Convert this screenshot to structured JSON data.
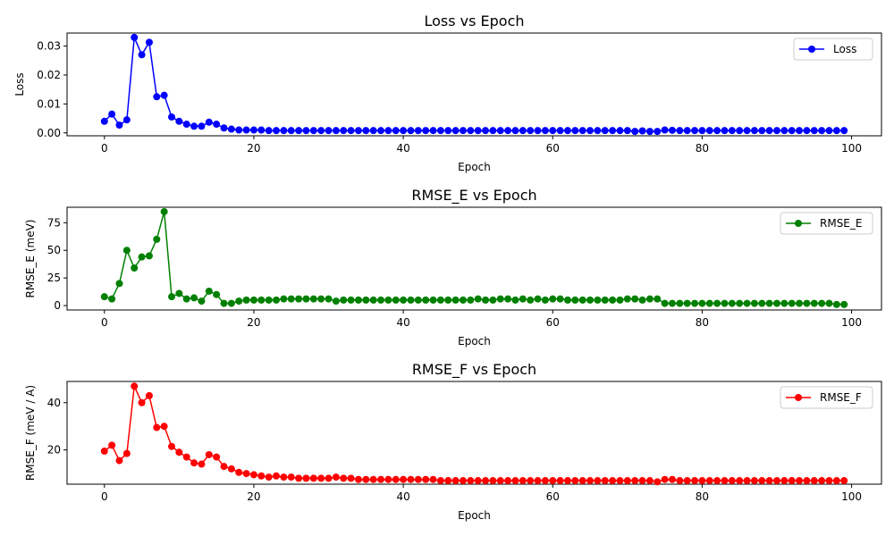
{
  "chart_data": [
    {
      "type": "line",
      "title": "Loss vs Epoch",
      "xlabel": "Epoch",
      "ylabel": "Loss",
      "xlim": [
        -5,
        104
      ],
      "ylim": [
        -0.001,
        0.0345
      ],
      "xticks": [
        0,
        20,
        40,
        60,
        80,
        100
      ],
      "yticks": [
        0.0,
        0.01,
        0.02,
        0.03
      ],
      "ytick_labels": [
        "0.00",
        "0.01",
        "0.02",
        "0.03"
      ],
      "legend": "top-right",
      "series": [
        {
          "name": "Loss",
          "color": "#0000ff",
          "x": [
            0,
            1,
            2,
            3,
            4,
            5,
            6,
            7,
            8,
            9,
            10,
            11,
            12,
            13,
            14,
            15,
            16,
            17,
            18,
            19,
            20,
            21,
            22,
            23,
            24,
            25,
            26,
            27,
            28,
            29,
            30,
            31,
            32,
            33,
            34,
            35,
            36,
            37,
            38,
            39,
            40,
            41,
            42,
            43,
            44,
            45,
            46,
            47,
            48,
            49,
            50,
            51,
            52,
            53,
            54,
            55,
            56,
            57,
            58,
            59,
            60,
            61,
            62,
            63,
            64,
            65,
            66,
            67,
            68,
            69,
            70,
            71,
            72,
            73,
            74,
            75,
            76,
            77,
            78,
            79,
            80,
            81,
            82,
            83,
            84,
            85,
            86,
            87,
            88,
            89,
            90,
            91,
            92,
            93,
            94,
            95,
            96,
            97,
            98,
            99
          ],
          "values": [
            0.004,
            0.0065,
            0.0027,
            0.0045,
            0.033,
            0.027,
            0.0313,
            0.0125,
            0.013,
            0.0055,
            0.004,
            0.003,
            0.0023,
            0.0023,
            0.0037,
            0.003,
            0.0017,
            0.0013,
            0.001,
            0.001,
            0.001,
            0.001,
            0.0008,
            0.0008,
            0.0008,
            0.0008,
            0.0008,
            0.0008,
            0.0008,
            0.0008,
            0.0008,
            0.0008,
            0.0008,
            0.0008,
            0.0008,
            0.0008,
            0.0008,
            0.0008,
            0.0008,
            0.0008,
            0.0008,
            0.0008,
            0.0008,
            0.0008,
            0.0008,
            0.0008,
            0.0008,
            0.0008,
            0.0008,
            0.0008,
            0.0008,
            0.0008,
            0.0008,
            0.0008,
            0.0008,
            0.0008,
            0.0008,
            0.0008,
            0.0008,
            0.0008,
            0.0008,
            0.0008,
            0.0008,
            0.0008,
            0.0008,
            0.0008,
            0.0008,
            0.0008,
            0.0008,
            0.0008,
            0.0008,
            0.0005,
            0.0007,
            0.0005,
            0.0005,
            0.001,
            0.0009,
            0.0008,
            0.0008,
            0.0008,
            0.0008,
            0.0008,
            0.0008,
            0.0008,
            0.0008,
            0.0008,
            0.0008,
            0.0008,
            0.0008,
            0.0008,
            0.0008,
            0.0008,
            0.0008,
            0.0008,
            0.0008,
            0.0008,
            0.0008,
            0.0008,
            0.0008,
            0.0008
          ]
        }
      ]
    },
    {
      "type": "line",
      "title": "RMSE_E vs Epoch",
      "xlabel": "Epoch",
      "ylabel": "RMSE_E (meV)",
      "xlim": [
        -5,
        104
      ],
      "ylim": [
        -4,
        89
      ],
      "xticks": [
        0,
        20,
        40,
        60,
        80,
        100
      ],
      "yticks": [
        0,
        25,
        50,
        75
      ],
      "ytick_labels": [
        "0",
        "25",
        "50",
        "75"
      ],
      "legend": "top-right",
      "series": [
        {
          "name": "RMSE_E",
          "color": "#008000",
          "x": [
            0,
            1,
            2,
            3,
            4,
            5,
            6,
            7,
            8,
            9,
            10,
            11,
            12,
            13,
            14,
            15,
            16,
            17,
            18,
            19,
            20,
            21,
            22,
            23,
            24,
            25,
            26,
            27,
            28,
            29,
            30,
            31,
            32,
            33,
            34,
            35,
            36,
            37,
            38,
            39,
            40,
            41,
            42,
            43,
            44,
            45,
            46,
            47,
            48,
            49,
            50,
            51,
            52,
            53,
            54,
            55,
            56,
            57,
            58,
            59,
            60,
            61,
            62,
            63,
            64,
            65,
            66,
            67,
            68,
            69,
            70,
            71,
            72,
            73,
            74,
            75,
            76,
            77,
            78,
            79,
            80,
            81,
            82,
            83,
            84,
            85,
            86,
            87,
            88,
            89,
            90,
            91,
            92,
            93,
            94,
            95,
            96,
            97,
            98,
            99
          ],
          "values": [
            8,
            6,
            20,
            50,
            34,
            44,
            45,
            60,
            85,
            8,
            11,
            6,
            7,
            4,
            13,
            10,
            2,
            2,
            4,
            5,
            5,
            5,
            5,
            5,
            6,
            6,
            6,
            6,
            6,
            6,
            6,
            4,
            5,
            5,
            5,
            5,
            5,
            5,
            5,
            5,
            5,
            5,
            5,
            5,
            5,
            5,
            5,
            5,
            5,
            5,
            6,
            5,
            5,
            6,
            6,
            5,
            6,
            5,
            6,
            5,
            6,
            6,
            5,
            5,
            5,
            5,
            5,
            5,
            5,
            5,
            6,
            6,
            5,
            6,
            6,
            2,
            2,
            2,
            2,
            2,
            2,
            2,
            2,
            2,
            2,
            2,
            2,
            2,
            2,
            2,
            2,
            2,
            2,
            2,
            2,
            2,
            2,
            2,
            1,
            1
          ]
        }
      ]
    },
    {
      "type": "line",
      "title": "RMSE_F vs Epoch",
      "xlabel": "Epoch",
      "ylabel": "RMSE_F (meV / A)",
      "xlim": [
        -5,
        104
      ],
      "ylim": [
        5.5,
        49
      ],
      "xticks": [
        0,
        20,
        40,
        60,
        80,
        100
      ],
      "yticks": [
        20,
        40
      ],
      "ytick_labels": [
        "20",
        "40"
      ],
      "legend": "top-right",
      "series": [
        {
          "name": "RMSE_F",
          "color": "#ff0000",
          "x": [
            0,
            1,
            2,
            3,
            4,
            5,
            6,
            7,
            8,
            9,
            10,
            11,
            12,
            13,
            14,
            15,
            16,
            17,
            18,
            19,
            20,
            21,
            22,
            23,
            24,
            25,
            26,
            27,
            28,
            29,
            30,
            31,
            32,
            33,
            34,
            35,
            36,
            37,
            38,
            39,
            40,
            41,
            42,
            43,
            44,
            45,
            46,
            47,
            48,
            49,
            50,
            51,
            52,
            53,
            54,
            55,
            56,
            57,
            58,
            59,
            60,
            61,
            62,
            63,
            64,
            65,
            66,
            67,
            68,
            69,
            70,
            71,
            72,
            73,
            74,
            75,
            76,
            77,
            78,
            79,
            80,
            81,
            82,
            83,
            84,
            85,
            86,
            87,
            88,
            89,
            90,
            91,
            92,
            93,
            94,
            95,
            96,
            97,
            98,
            99
          ],
          "values": [
            19.5,
            22,
            15.5,
            18.5,
            47,
            40,
            43,
            29.5,
            30,
            21.5,
            19,
            17,
            14.5,
            14,
            18,
            17,
            13,
            12,
            10.5,
            10,
            9.5,
            9,
            8.5,
            9,
            8.5,
            8.5,
            8,
            8,
            8,
            8,
            8,
            8.5,
            8,
            8,
            7.5,
            7.5,
            7.5,
            7.5,
            7.5,
            7.5,
            7.5,
            7.5,
            7.5,
            7.5,
            7.5,
            7,
            7,
            7,
            7,
            7,
            7,
            7,
            7,
            7,
            7,
            7,
            7,
            7,
            7,
            7,
            7,
            7,
            7,
            7,
            7,
            7,
            7,
            7,
            7,
            7,
            7,
            7,
            7,
            7,
            6.5,
            7.5,
            7.5,
            7,
            7,
            7,
            7,
            7,
            7,
            7,
            7,
            7,
            7,
            7,
            7,
            7,
            7,
            7,
            7,
            7,
            7,
            7,
            7,
            7,
            7,
            7
          ]
        }
      ]
    }
  ]
}
